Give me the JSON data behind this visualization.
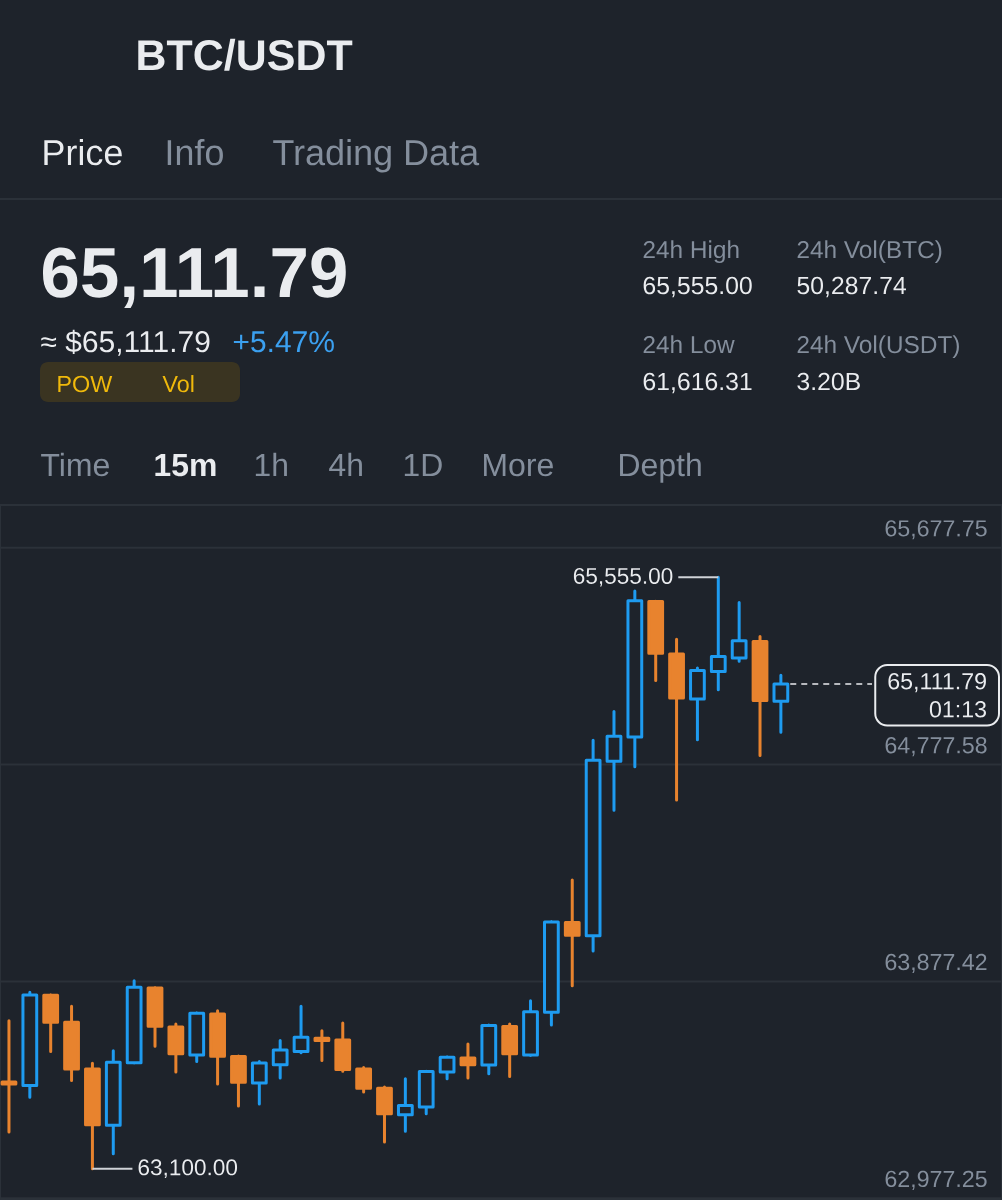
{
  "chart_data": {
    "type": "candlestick",
    "title": "BTC/USDT",
    "categories": [
      null,
      null,
      null,
      null,
      null,
      null,
      null,
      null,
      null,
      null,
      null,
      null,
      null,
      null,
      null,
      null,
      null,
      null,
      null,
      null,
      null,
      null,
      null,
      null,
      null,
      null,
      null,
      null,
      null,
      null,
      null,
      null,
      null,
      null,
      null,
      null,
      null,
      null
    ],
    "ohlc": [
      [
        63460,
        63714,
        63252,
        63452
      ],
      [
        63445,
        63832,
        63397,
        63821
      ],
      [
        63820,
        63822,
        63586,
        63708
      ],
      [
        63708,
        63774,
        63466,
        63514
      ],
      [
        63514,
        63538,
        63100,
        63282
      ],
      [
        63280,
        63590,
        63162,
        63542
      ],
      [
        63540,
        63880,
        63539,
        63853
      ],
      [
        63850,
        63852,
        63608,
        63691
      ],
      [
        63688,
        63701,
        63501,
        63577
      ],
      [
        63572,
        63747,
        63545,
        63745
      ],
      [
        63742,
        63756,
        63452,
        63567
      ],
      [
        63566,
        63568,
        63360,
        63459
      ],
      [
        63456,
        63545,
        63369,
        63539
      ],
      [
        63532,
        63632,
        63476,
        63593
      ],
      [
        63586,
        63774,
        63581,
        63646
      ],
      [
        63642,
        63673,
        63549,
        63632
      ],
      [
        63634,
        63705,
        63505,
        63512
      ],
      [
        63514,
        63520,
        63418,
        63434
      ],
      [
        63434,
        63439,
        63211,
        63328
      ],
      [
        63324,
        63473,
        63255,
        63362
      ],
      [
        63356,
        63505,
        63328,
        63503
      ],
      [
        63501,
        63565,
        63473,
        63563
      ],
      [
        63559,
        63618,
        63476,
        63531
      ],
      [
        63530,
        63696,
        63494,
        63694
      ],
      [
        63690,
        63701,
        63483,
        63577
      ],
      [
        63572,
        63797,
        63570,
        63752
      ],
      [
        63749,
        64126,
        63697,
        64124
      ],
      [
        64122,
        64298,
        63859,
        64069
      ],
      [
        64067,
        64878,
        64004,
        64796
      ],
      [
        64791,
        64998,
        64588,
        64895
      ],
      [
        64892,
        65498,
        64768,
        65458
      ],
      [
        65454,
        65456,
        65127,
        65240
      ],
      [
        65237,
        65298,
        64630,
        65054
      ],
      [
        65050,
        65178,
        64881,
        65168
      ],
      [
        65164,
        65555,
        65088,
        65226
      ],
      [
        65220,
        65450,
        65206,
        65292
      ],
      [
        65288,
        65309,
        64815,
        65044
      ],
      [
        65040,
        65148,
        64912,
        65111.79
      ]
    ],
    "colors": [
      "#e8832e",
      "#1e9bf0",
      "#e8832e",
      "#e8832e",
      "#e8832e",
      "#1e9bf0",
      "#1e9bf0",
      "#e8832e",
      "#e8832e",
      "#1e9bf0",
      "#e8832e",
      "#e8832e",
      "#1e9bf0",
      "#1e9bf0",
      "#1e9bf0",
      "#e8832e",
      "#e8832e",
      "#e8832e",
      "#e8832e",
      "#1e9bf0",
      "#1e9bf0",
      "#1e9bf0",
      "#e8832e",
      "#1e9bf0",
      "#e8832e",
      "#1e9bf0",
      "#1e9bf0",
      "#e8832e",
      "#1e9bf0",
      "#1e9bf0",
      "#1e9bf0",
      "#e8832e",
      "#e8832e",
      "#1e9bf0",
      "#1e9bf0",
      "#1e9bf0",
      "#e8832e",
      "#1e9bf0"
    ],
    "ylim": [
      62970,
      65855
    ],
    "yticks": [
      {
        "value": 62977.25,
        "label": "62,977.25"
      },
      {
        "value": 63877.42,
        "label": "63,877.42"
      },
      {
        "value": 64777.58,
        "label": "64,777.58"
      },
      {
        "value": 65677.75,
        "label": "65,677.75"
      }
    ],
    "grid": "y",
    "tick_labels": "y",
    "ref_lines": [
      {
        "axis": "y",
        "value": 65111.79,
        "label": "65,111.79",
        "color": "#eaecef",
        "line_style": "dashed"
      }
    ],
    "annotations": [
      "Price",
      "Info",
      "Trading Data",
      "65,111.79",
      "≈ $65,111.79",
      "+5.47%",
      "POW",
      "Vol",
      "24h High",
      "65,555.00",
      "24h Vol(BTC)",
      "50,287.74",
      "24h Low",
      "61,616.31",
      "24h Vol(USDT)",
      "3.20B",
      "Time",
      "15m",
      "1h",
      "4h",
      "1D",
      "More",
      "Depth",
      "01:13",
      "65,555.00",
      "63,100.00"
    ]
  }
}
